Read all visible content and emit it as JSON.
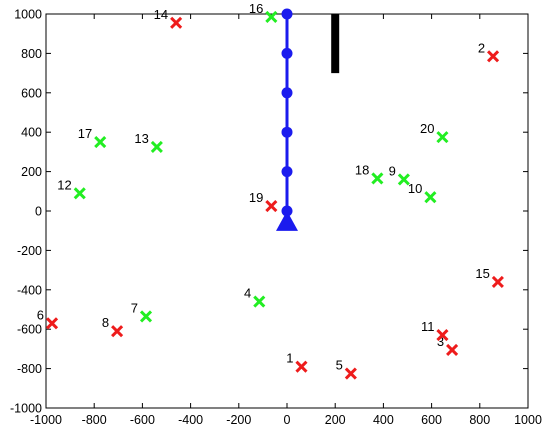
{
  "chart_data": {
    "type": "scatter",
    "title": "",
    "xlabel": "",
    "ylabel": "",
    "xlim": [
      -1000,
      1000
    ],
    "ylim": [
      -1000,
      1000
    ],
    "xticks": [
      "-1000",
      "-800",
      "-600",
      "-400",
      "-200",
      "0",
      "200",
      "400",
      "600",
      "800",
      "1000"
    ],
    "yticks": [
      "1000",
      "800",
      "600",
      "400",
      "200",
      "0",
      "-200",
      "-400",
      "-600",
      "-800",
      "-1000"
    ],
    "grid": false,
    "colors": {
      "red": "#ee1c1c",
      "green": "#22ee22",
      "blue": "#1b1bee",
      "obstacle": "#000000"
    },
    "series": [
      {
        "color": "red",
        "marker": "x",
        "points": [
          {
            "label": "1",
            "x": 60,
            "y": -790
          },
          {
            "label": "2",
            "x": 855,
            "y": 785
          },
          {
            "label": "3",
            "x": 685,
            "y": -705
          },
          {
            "label": "5",
            "x": 265,
            "y": -825
          },
          {
            "label": "6",
            "x": -975,
            "y": -570
          },
          {
            "label": "8",
            "x": -705,
            "y": -610
          },
          {
            "label": "11",
            "x": 645,
            "y": -630
          },
          {
            "label": "14",
            "x": -460,
            "y": 955
          },
          {
            "label": "15",
            "x": 875,
            "y": -360
          },
          {
            "label": "19",
            "x": -65,
            "y": 25
          }
        ]
      },
      {
        "color": "green",
        "marker": "x",
        "points": [
          {
            "label": "4",
            "x": -115,
            "y": -460
          },
          {
            "label": "7",
            "x": -585,
            "y": -535
          },
          {
            "label": "9",
            "x": 485,
            "y": 160
          },
          {
            "label": "10",
            "x": 595,
            "y": 70
          },
          {
            "label": "12",
            "x": -860,
            "y": 90
          },
          {
            "label": "13",
            "x": -540,
            "y": 325
          },
          {
            "label": "16",
            "x": -65,
            "y": 985
          },
          {
            "label": "17",
            "x": -775,
            "y": 350
          },
          {
            "label": "18",
            "x": 375,
            "y": 165
          },
          {
            "label": "20",
            "x": 645,
            "y": 375
          }
        ]
      }
    ],
    "path": {
      "color": "blue",
      "x": 0,
      "y": [
        0,
        200,
        400,
        600,
        800,
        1000
      ],
      "start_marker": "triangle",
      "start": [
        0,
        -55
      ]
    },
    "obstacle": {
      "color": "obstacle",
      "x": 200,
      "y_from": 700,
      "y_to": 1000
    }
  }
}
